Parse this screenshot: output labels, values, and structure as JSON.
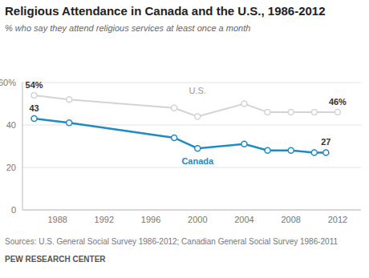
{
  "chart_data": {
    "type": "line",
    "title": "Religious Attendance in Canada and the U.S., 1986-2012",
    "subtitle": "% who say they attend religious services at least once a month",
    "source": "Sources: U.S. General Social Survey 1986-2012; Canadian General Social Survey 1986-2011",
    "credit": "PEW RESEARCH CENTER",
    "xlim": [
      1985,
      2014
    ],
    "xticks": [
      1988,
      1992,
      1996,
      2000,
      2004,
      2008,
      2012
    ],
    "ylim": [
      0,
      60
    ],
    "yticks": [
      0,
      20,
      40,
      {
        "value": 60,
        "label": "60%"
      }
    ],
    "grid": true,
    "marker": "circle",
    "series": [
      {
        "name": "U.S.",
        "color": "#d3d3d3",
        "x": [
          1986,
          1989,
          1998,
          2000,
          2004,
          2006,
          2008,
          2010,
          2012
        ],
        "values": [
          54,
          52,
          48,
          44,
          50,
          46,
          46,
          46,
          46
        ],
        "value_labels": [
          "54%",
          null,
          null,
          null,
          null,
          null,
          null,
          null,
          "46%"
        ]
      },
      {
        "name": "Canada",
        "color": "#1f8bc3",
        "x": [
          1986,
          1989,
          1998,
          2000,
          2004,
          2006,
          2008,
          2010,
          2011
        ],
        "values": [
          43,
          41,
          34,
          29,
          31,
          28,
          28,
          27,
          27
        ],
        "value_labels": [
          "43",
          null,
          null,
          null,
          null,
          null,
          null,
          null,
          "27"
        ]
      }
    ]
  }
}
